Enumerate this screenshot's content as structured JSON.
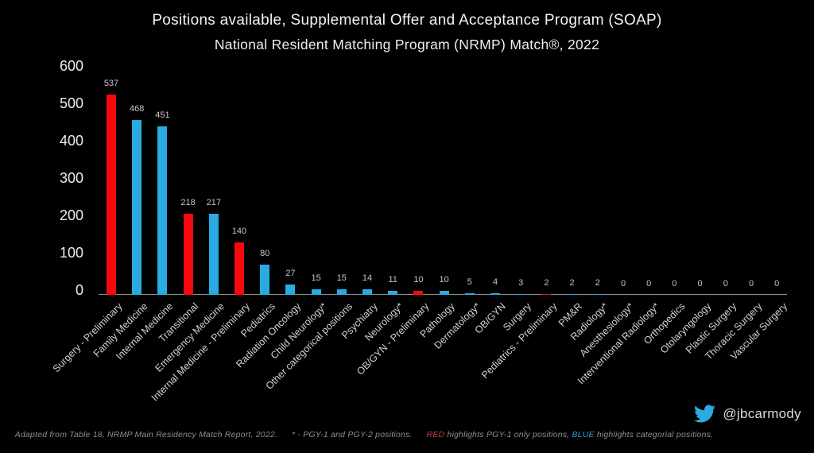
{
  "header": {
    "title": "Positions available, Supplemental Offer and Acceptance Program (SOAP)",
    "subtitle": "National Resident Matching Program (NRMP) Match®, 2022"
  },
  "chart_data": {
    "type": "bar",
    "title": "Positions available, Supplemental Offer and Acceptance Program (SOAP)",
    "subtitle": "National Resident Matching Program (NRMP) Match®, 2022",
    "categories": [
      "Surgery - Preliminary",
      "Family Medicine",
      "Internal Medicine",
      "Transitional",
      "Emergency Medicine",
      "Internal Medicine - Preliminary",
      "Pediatrics",
      "Radiation Oncology",
      "Child Neurology*",
      "Other categorical positions",
      "Psychiatry",
      "Neurology*",
      "OB/GYN - Preliminary",
      "Pathology",
      "Dermatology*",
      "OB/GYN",
      "Surgery",
      "Pediatrics - Preliminary",
      "PM&R",
      "Radiology*",
      "Anesthesiology*",
      "Interventional Radiology*",
      "Orthopedics",
      "Otolaryngology",
      "Plastic Surgery",
      "Thoracic Surgery",
      "Vascular Surgery"
    ],
    "values": [
      537,
      468,
      451,
      218,
      217,
      140,
      80,
      27,
      15,
      15,
      14,
      11,
      10,
      10,
      5,
      4,
      3,
      2,
      2,
      2,
      0,
      0,
      0,
      0,
      0,
      0,
      0
    ],
    "bar_colors": [
      "red",
      "blue",
      "blue",
      "red",
      "blue",
      "red",
      "blue",
      "blue",
      "blue",
      "blue",
      "blue",
      "blue",
      "red",
      "blue",
      "blue",
      "blue",
      "blue",
      "red",
      "blue",
      "blue",
      "blue",
      "blue",
      "blue",
      "blue",
      "blue",
      "blue",
      "blue"
    ],
    "xlabel": "",
    "ylabel": "",
    "ylim": [
      0,
      600
    ],
    "yticks": [
      0,
      100,
      200,
      300,
      400,
      500,
      600
    ],
    "grid": false,
    "legend": "RED highlights PGY-1 only positions, BLUE highlights categorial positions"
  },
  "footer": {
    "source": "Adapted from Table 18, NRMP Main Residency Match Report, 2022.",
    "asterisk_note": "* - PGY-1 and PGY-2 positions.",
    "red_word": "RED",
    "red_rest": " highlights PGY-1 only positions, ",
    "blue_word": "BLUE",
    "blue_rest": " highlights categorial positions."
  },
  "twitter": {
    "handle": "@jbcarmody",
    "icon": "twitter-bird-icon"
  },
  "colors": {
    "background": "#000000",
    "red": "#f6080e",
    "blue": "#29abe2",
    "axis_line": "#8d8d8d",
    "tick_text": "#ededed",
    "value_label": "#c6c6c6",
    "category_label": "#d2d2d2",
    "title_text": "#f3f3f3",
    "footer_text": "#8f8f8f",
    "footer_red": "#d23b3b",
    "footer_blue": "#2e9fd4",
    "twitter_blue": "#2caae1"
  }
}
